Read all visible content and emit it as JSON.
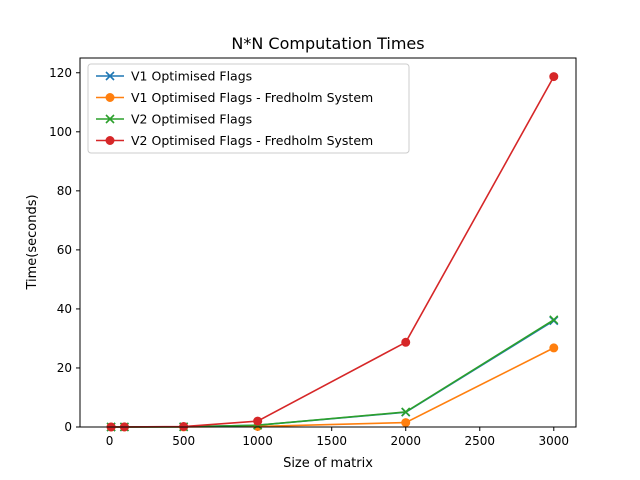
{
  "chart_data": {
    "type": "line",
    "title": "N*N Computation Times",
    "xlabel": "Size of matrix",
    "ylabel": "Time(seconds)",
    "xlim": [
      -200,
      3150
    ],
    "ylim": [
      0,
      125
    ],
    "xticks": [
      0,
      500,
      1000,
      1500,
      2000,
      2500,
      3000
    ],
    "yticks": [
      0,
      20,
      40,
      60,
      80,
      100,
      120
    ],
    "grid": false,
    "legend_position": "top-left",
    "x": [
      10,
      100,
      500,
      1000,
      2000,
      3000
    ],
    "series": [
      {
        "name": "V1 Optimised Flags",
        "color": "#1f77b4",
        "marker": "x",
        "values": [
          0.0,
          0.01,
          0.07,
          0.6,
          5.0,
          36.0
        ]
      },
      {
        "name": "V1 Optimised Flags - Fredholm System",
        "color": "#ff7f0e",
        "marker": "o",
        "values": [
          0.0,
          0.0,
          0.03,
          0.2,
          1.5,
          26.8
        ]
      },
      {
        "name": "V2 Optimised Flags",
        "color": "#2ca02c",
        "marker": "x",
        "values": [
          0.0,
          0.01,
          0.07,
          0.6,
          5.1,
          36.3
        ]
      },
      {
        "name": "V2 Optimised Flags - Fredholm System",
        "color": "#d62728",
        "marker": "o",
        "values": [
          0.0,
          0.03,
          0.15,
          2.0,
          28.7,
          118.7
        ]
      }
    ]
  }
}
